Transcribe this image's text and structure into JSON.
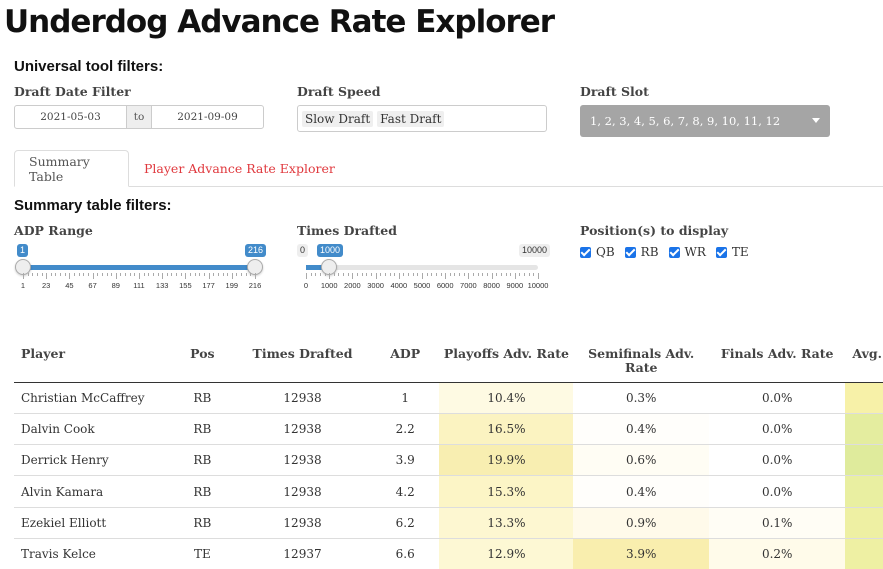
{
  "title": "Underdog Advance Rate Explorer",
  "universal_filters": {
    "heading": "Universal tool filters:",
    "date_label": "Draft Date Filter",
    "date_start": "2021-05-03",
    "date_to": "to",
    "date_end": "2021-09-09",
    "speed_label": "Draft Speed",
    "speed_chips": [
      "Slow Draft",
      "Fast Draft"
    ],
    "slot_label": "Draft Slot",
    "slot_value": "1, 2, 3, 4, 5, 6, 7, 8, 9, 10, 11, 12"
  },
  "tabs": [
    {
      "label": "Summary Table"
    },
    {
      "label": "Player Advance Rate Explorer"
    }
  ],
  "summary_filters": {
    "heading": "Summary table filters:",
    "adp_label": "ADP Range",
    "adp_min_selected": "1",
    "adp_max_selected": "216",
    "adp_ticks": [
      "1",
      "23",
      "45",
      "67",
      "89",
      "111",
      "133",
      "155",
      "177",
      "199",
      "216"
    ],
    "times_label": "Times Drafted",
    "times_min": "0",
    "times_selected": "1000",
    "times_max": "10000",
    "times_ticks": [
      "0",
      "1000",
      "2000",
      "3000",
      "4000",
      "5000",
      "6000",
      "7000",
      "8000",
      "9000",
      "10000"
    ],
    "times_fill_fraction": 0.1,
    "positions_label": "Position(s) to display",
    "positions": [
      {
        "label": "QB",
        "checked": true
      },
      {
        "label": "RB",
        "checked": true
      },
      {
        "label": "WR",
        "checked": true
      },
      {
        "label": "TE",
        "checked": true
      }
    ]
  },
  "table": {
    "headers": [
      "Player",
      "Pos",
      "Times Drafted",
      "ADP",
      "Playoffs Adv. Rate",
      "Semifinals Adv. Rate",
      "Finals Adv. Rate",
      "Avg."
    ],
    "rows": [
      {
        "player": "Christian McCaffrey",
        "pos": "RB",
        "times": "12938",
        "adp": "1",
        "playoffs": "10.4%",
        "semis": "0.3%",
        "finals": "0.0%",
        "c_play": "#fefae3",
        "c_semi": "#ffffff",
        "c_fin": "#ffffff",
        "c_avg": "#f7f1a8"
      },
      {
        "player": "Dalvin Cook",
        "pos": "RB",
        "times": "12938",
        "adp": "2.2",
        "playoffs": "16.5%",
        "semis": "0.4%",
        "finals": "0.0%",
        "c_play": "#fbf3c1",
        "c_semi": "#fffefb",
        "c_fin": "#ffffff",
        "c_avg": "#e4ed9f"
      },
      {
        "player": "Derrick Henry",
        "pos": "RB",
        "times": "12938",
        "adp": "3.9",
        "playoffs": "19.9%",
        "semis": "0.6%",
        "finals": "0.0%",
        "c_play": "#f8eeb1",
        "c_semi": "#fffdf4",
        "c_fin": "#ffffff",
        "c_avg": "#dfeb9c"
      },
      {
        "player": "Alvin Kamara",
        "pos": "RB",
        "times": "12938",
        "adp": "4.2",
        "playoffs": "15.3%",
        "semis": "0.4%",
        "finals": "0.0%",
        "c_play": "#fcf5c6",
        "c_semi": "#fffefb",
        "c_fin": "#ffffff",
        "c_avg": "#e9efa1"
      },
      {
        "player": "Ezekiel Elliott",
        "pos": "RB",
        "times": "12938",
        "adp": "6.2",
        "playoffs": "13.3%",
        "semis": "0.9%",
        "finals": "0.1%",
        "c_play": "#fdf7d1",
        "c_semi": "#fffaea",
        "c_fin": "#fffdf5",
        "c_avg": "#eef0a3"
      },
      {
        "player": "Travis Kelce",
        "pos": "TE",
        "times": "12937",
        "adp": "6.6",
        "playoffs": "12.9%",
        "semis": "3.9%",
        "finals": "0.2%",
        "c_play": "#fdf8d4",
        "c_semi": "#f9eeae",
        "c_fin": "#fffbea",
        "c_avg": "#eef0a3"
      }
    ]
  }
}
